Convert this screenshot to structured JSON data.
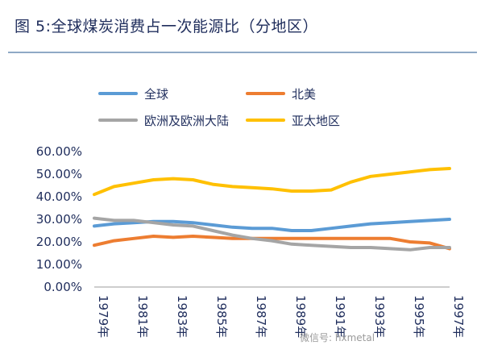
{
  "title": "图 5:全球煤炭消费占一次能源比（分地区）",
  "watermark": "微信号: hxmetal",
  "colors": {
    "axis": "#bdbdbd",
    "text": "#1f2d5c",
    "rule": "#8fa9c6"
  },
  "chart_data": {
    "type": "line",
    "title": "",
    "xlabel": "",
    "ylabel": "",
    "ylim": [
      0,
      60
    ],
    "yticks": [
      "0.00%",
      "10.00%",
      "20.00%",
      "30.00%",
      "40.00%",
      "50.00%",
      "60.00%"
    ],
    "x": [
      1979,
      1980,
      1981,
      1982,
      1983,
      1984,
      1985,
      1986,
      1987,
      1988,
      1989,
      1990,
      1991,
      1992,
      1993,
      1994,
      1995,
      1996,
      1997
    ],
    "xticks": [
      "1979年",
      "1981年",
      "1983年",
      "1985年",
      "1987年",
      "1989年",
      "1991年",
      "1993年",
      "1995年",
      "1997年"
    ],
    "legend_position": "top",
    "series": [
      {
        "name": "全球",
        "color": "#5b9bd5",
        "values": [
          27.0,
          28.0,
          28.5,
          29.0,
          29.0,
          28.5,
          27.5,
          26.5,
          26.0,
          26.0,
          25.0,
          25.0,
          26.0,
          27.0,
          28.0,
          28.5,
          29.0,
          29.5,
          30.0
        ]
      },
      {
        "name": "北美",
        "color": "#ed7d31",
        "values": [
          18.5,
          20.5,
          21.5,
          22.5,
          22.0,
          22.5,
          22.0,
          21.5,
          21.5,
          21.5,
          21.5,
          21.5,
          21.5,
          21.5,
          21.5,
          21.5,
          20.0,
          19.5,
          17.0
        ]
      },
      {
        "name": "欧洲及欧洲大陆",
        "color": "#a5a5a5",
        "values": [
          30.5,
          29.5,
          29.5,
          28.5,
          27.5,
          27.0,
          25.0,
          23.0,
          21.5,
          20.5,
          19.0,
          18.5,
          18.0,
          17.5,
          17.5,
          17.0,
          16.5,
          17.5,
          17.5
        ]
      },
      {
        "name": "亚太地区",
        "color": "#ffc000",
        "values": [
          41.0,
          44.5,
          46.0,
          47.5,
          48.0,
          47.5,
          45.5,
          44.5,
          44.0,
          43.5,
          42.5,
          42.5,
          43.0,
          46.5,
          49.0,
          50.0,
          51.0,
          52.0,
          52.5
        ]
      }
    ]
  }
}
